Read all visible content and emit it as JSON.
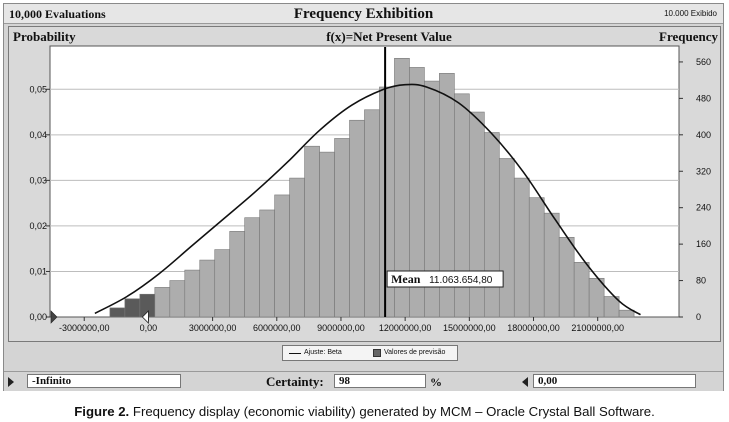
{
  "window": {
    "trials_label": "10,000 Evaluations",
    "title": "Frequency Exhibition",
    "shown_label": "10.000 Exibido"
  },
  "chart_data": {
    "type": "bar",
    "title": "f(x)=Net Present Value",
    "ylabel_left": "Probability",
    "ylabel_right": "Frequency",
    "y_ticks_left": [
      "0,00",
      "0,01",
      "0,02",
      "0,03",
      "0,04",
      "0,05"
    ],
    "y_tick_values_left": [
      0,
      0.01,
      0.02,
      0.03,
      0.04,
      0.05
    ],
    "y_ticks_right": [
      "0",
      "80",
      "160",
      "240",
      "320",
      "400",
      "480",
      "560"
    ],
    "y_tick_values_right": [
      0,
      80,
      160,
      240,
      320,
      400,
      480,
      560
    ],
    "ylim_left": [
      0,
      0.0595
    ],
    "ylim_right": [
      0,
      595
    ],
    "x_ticks": [
      "-3000000,00",
      "0,00",
      "3000000,00",
      "6000000,00",
      "9000000,00",
      "12000000,00",
      "15000000,00",
      "18000000,00",
      "21000000,00"
    ],
    "x_tick_values": [
      -3000000,
      0,
      3000000,
      6000000,
      9000000,
      12000000,
      15000000,
      18000000,
      21000000
    ],
    "xlim": [
      -4600000,
      24800000
    ],
    "bin_width": 700000,
    "bin_starts": [
      -1800000,
      -1100000,
      -400000,
      300000,
      1000000,
      1700000,
      2400000,
      3100000,
      3800000,
      4500000,
      5200000,
      5900000,
      6600000,
      7300000,
      8000000,
      8700000,
      9400000,
      10100000,
      10800000,
      11500000,
      12200000,
      12900000,
      13600000,
      14300000,
      15000000,
      15700000,
      16400000,
      17100000,
      17800000,
      18500000,
      19200000,
      19900000,
      20600000,
      21300000,
      22000000
    ],
    "frequencies": [
      20,
      40,
      50,
      65,
      80,
      103,
      125,
      148,
      188,
      218,
      235,
      268,
      305,
      375,
      362,
      392,
      432,
      455,
      505,
      568,
      548,
      518,
      535,
      490,
      450,
      405,
      348,
      305,
      262,
      228,
      175,
      120,
      85,
      45,
      15
    ],
    "highlight_below_certainty_bins": 3,
    "fit": {
      "name": "Ajuste: Beta",
      "x": [
        -2500000,
        -1000000,
        500000,
        2000000,
        3500000,
        5000000,
        6500000,
        8000000,
        9500000,
        11000000,
        12000000,
        13000000,
        14500000,
        16000000,
        17500000,
        19000000,
        20500000,
        22000000,
        23000000
      ],
      "frequency": [
        8,
        45,
        95,
        155,
        215,
        275,
        340,
        410,
        465,
        500,
        510,
        505,
        470,
        405,
        320,
        215,
        115,
        35,
        5
      ]
    },
    "mean": {
      "label": "Mean",
      "value_text": "11.063.654,80",
      "value": 11063654.8
    },
    "legend": {
      "fit_label": "Ajuste: Beta",
      "bars_label": "Valores de previsão",
      "position": "bottom-center"
    },
    "colors": {
      "bars": "#adadad",
      "bars_highlight": "#5a5a5a",
      "fit_line": "#111111",
      "mean_line": "#000000",
      "plot_bg": "#ffffff"
    },
    "grid": true
  },
  "bottom": {
    "lower_value": "-Infinito",
    "certainty_label": "Certainty:",
    "certainty_value": "98",
    "percent_sign": "%",
    "upper_value": "0,00"
  },
  "caption": {
    "figure_label": "Figure 2.",
    "text": "Frequency display (economic viability) generated by MCM – Oracle Crystal Ball Software."
  }
}
